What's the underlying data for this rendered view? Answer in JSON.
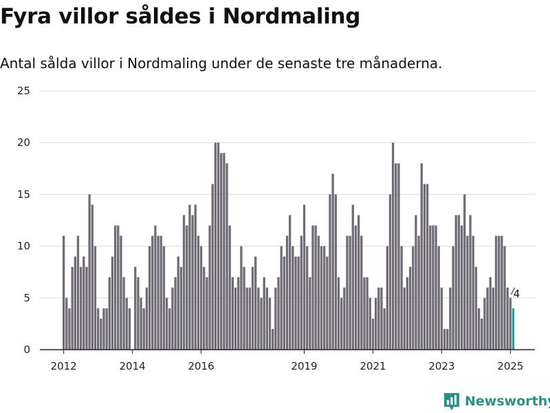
{
  "title": "Fyra villor såldes i Nordmaling",
  "subtitle": "Antal sålda villor i Nordmaling under de senaste tre månaderna.",
  "brand": {
    "name": "Newsworthy",
    "icon": "bar-chart-logo-icon",
    "color": "#2d8f86"
  },
  "colors": {
    "bar": "#6f6d73",
    "highlight": "#2a9d96",
    "grid": "#dcdcdc",
    "axis": "#222222"
  },
  "chart_data": {
    "type": "bar",
    "ylim": [
      0,
      25
    ],
    "yticks": [
      0,
      5,
      10,
      15,
      20,
      25
    ],
    "grid": true,
    "x_tick_labels": [
      "2012",
      "2014",
      "2016",
      "2019",
      "2021",
      "2023",
      "2025"
    ],
    "values": [
      11,
      5,
      4,
      8,
      9,
      11,
      8,
      9,
      8,
      15,
      14,
      10,
      4,
      3,
      4,
      4,
      7,
      9,
      12,
      12,
      11,
      7,
      5,
      4,
      0,
      8,
      7,
      5,
      4,
      6,
      10,
      11,
      12,
      11,
      11,
      10,
      5,
      4,
      6,
      7,
      9,
      8,
      13,
      12,
      14,
      13,
      14,
      11,
      10,
      8,
      7,
      12,
      16,
      20,
      20,
      19,
      19,
      18,
      12,
      7,
      6,
      7,
      10,
      8,
      6,
      6,
      8,
      9,
      6,
      5,
      7,
      6,
      5,
      2,
      6,
      7,
      10,
      9,
      11,
      13,
      10,
      9,
      9,
      11,
      14,
      10,
      7,
      12,
      12,
      11,
      10,
      10,
      9,
      15,
      17,
      15,
      7,
      5,
      6,
      11,
      11,
      14,
      12,
      13,
      11,
      7,
      7,
      5,
      3,
      5,
      6,
      6,
      4,
      10,
      15,
      20,
      18,
      18,
      10,
      6,
      7,
      8,
      10,
      13,
      11,
      18,
      16,
      16,
      12,
      12,
      12,
      10,
      6,
      2,
      2,
      6,
      10,
      13,
      13,
      12,
      15,
      11,
      13,
      11,
      8,
      4,
      3,
      5,
      6,
      7,
      6,
      11,
      11,
      11,
      10,
      6,
      5,
      4
    ],
    "highlight_label": "4"
  }
}
